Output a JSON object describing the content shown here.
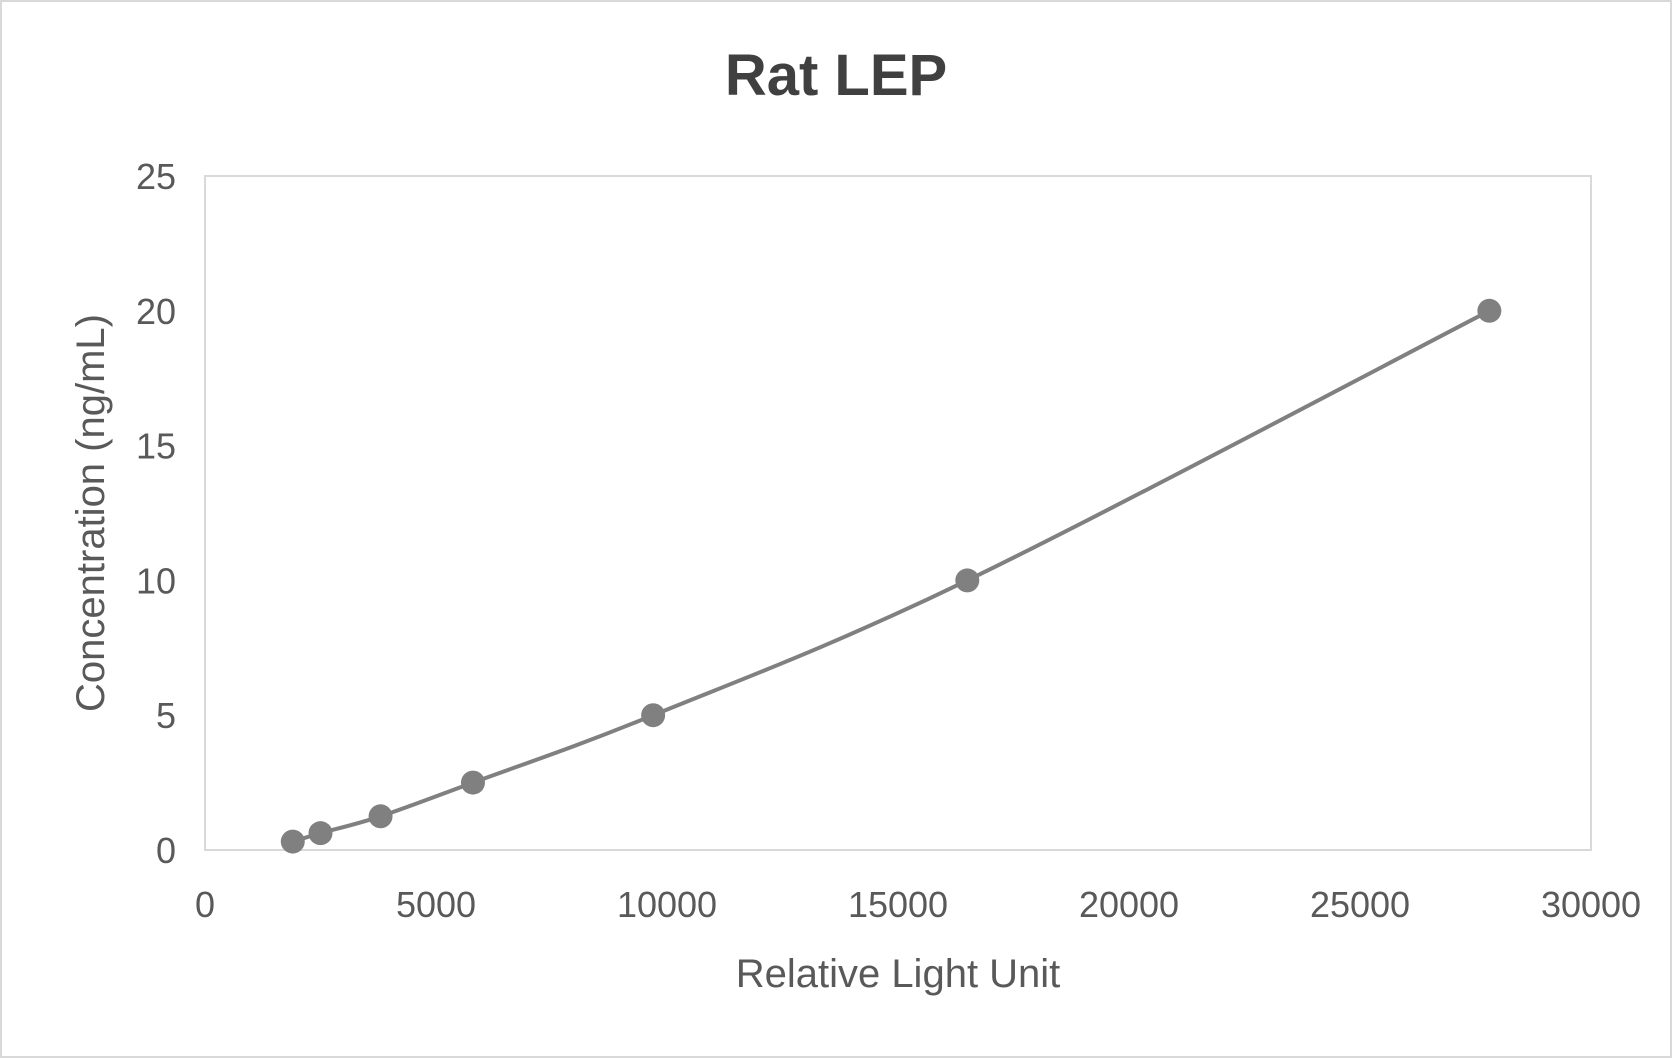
{
  "chart_data": {
    "type": "scatter",
    "title": "Rat LEP",
    "xlabel": "Relative Light Unit",
    "ylabel": "Concentration (ng/mL)",
    "xlim": [
      0,
      30000
    ],
    "ylim": [
      0,
      25
    ],
    "xticks": [
      "0",
      "5000",
      "10000",
      "15000",
      "20000",
      "25000",
      "30000"
    ],
    "yticks": [
      "0",
      "5",
      "10",
      "15",
      "20",
      "25"
    ],
    "grid": false,
    "line": "smoothed",
    "marker_color": "#808080",
    "line_color": "#808080",
    "series": [
      {
        "x": [
          1900,
          2500,
          3800,
          5800,
          9700,
          16500,
          27800
        ],
        "y": [
          0.3125,
          0.625,
          1.25,
          2.5,
          5,
          10,
          20
        ]
      }
    ]
  }
}
